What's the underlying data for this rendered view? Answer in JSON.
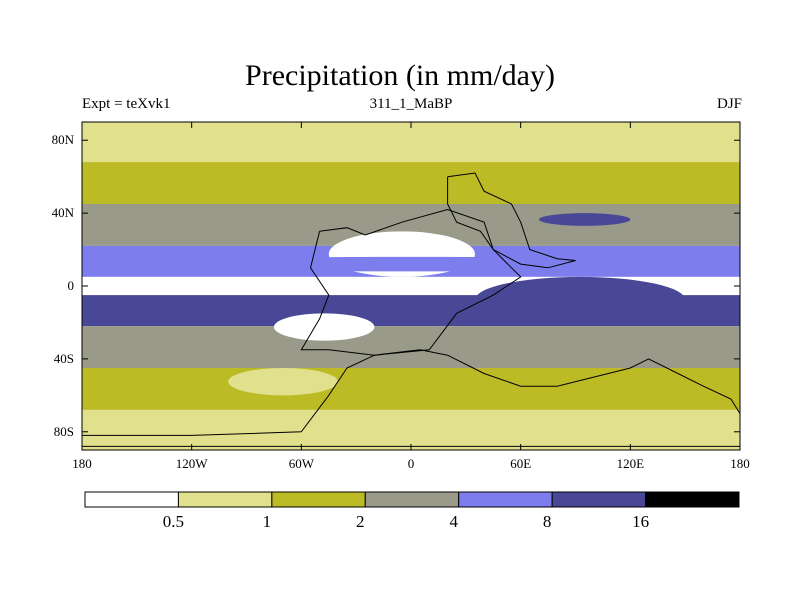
{
  "header": {
    "title": "Precipitation (in mm/day)",
    "left_label": "Expt = teXvk1",
    "center_label": "311_1_MaBP",
    "right_label": "DJF"
  },
  "chart_data": {
    "type": "heatmap",
    "title": "Precipitation (in mm/day)",
    "subtitle": "311_1_MaBP",
    "experiment": "Expt = teXvk1",
    "season": "DJF",
    "xlabel": "",
    "ylabel": "",
    "xlim": [
      -180,
      180
    ],
    "ylim": [
      -90,
      90
    ],
    "x_ticks": [
      {
        "value": -180,
        "label": "180"
      },
      {
        "value": -120,
        "label": "120W"
      },
      {
        "value": -60,
        "label": "60W"
      },
      {
        "value": 0,
        "label": "0"
      },
      {
        "value": 60,
        "label": "60E"
      },
      {
        "value": 120,
        "label": "120E"
      },
      {
        "value": 180,
        "label": "180"
      }
    ],
    "y_ticks": [
      {
        "value": 80,
        "label": "80N"
      },
      {
        "value": 40,
        "label": "40N"
      },
      {
        "value": 0,
        "label": "0"
      },
      {
        "value": -40,
        "label": "40S"
      },
      {
        "value": -80,
        "label": "80S"
      }
    ],
    "levels": [
      0.5,
      1,
      2,
      4,
      8,
      16
    ],
    "level_labels": [
      "0.5",
      "1",
      "2",
      "4",
      "8",
      "16"
    ],
    "colors": [
      "#ffffff",
      "#e1e08c",
      "#bdbb25",
      "#9a9a8a",
      "#7d7dee",
      "#484896",
      "#000000"
    ],
    "bands": [
      {
        "name": "polar-north",
        "lat": [
          68,
          90
        ],
        "class": 1
      },
      {
        "name": "high-lat-north",
        "lat": [
          45,
          68
        ],
        "class": 2
      },
      {
        "name": "midlat-north",
        "lat": [
          22,
          45
        ],
        "class": 3
      },
      {
        "name": "subtropics-north",
        "lat": [
          5,
          22
        ],
        "class": 4
      },
      {
        "name": "equator-dry",
        "lat": [
          -5,
          5
        ],
        "class": 0
      },
      {
        "name": "southern-itcz",
        "lat": [
          -22,
          -5
        ],
        "class": 5
      },
      {
        "name": "subtropics-south",
        "lat": [
          -45,
          -22
        ],
        "class": 3
      },
      {
        "name": "high-lat-south",
        "lat": [
          -68,
          -45
        ],
        "class": 2
      },
      {
        "name": "polar-south",
        "lat": [
          -90,
          -68
        ],
        "class": 1
      }
    ],
    "regions": [
      {
        "name": "north-dry-belt",
        "lon": [
          -170,
          180
        ],
        "lat": [
          -3,
          4
        ],
        "class": 0
      },
      {
        "name": "continent-arid-core",
        "lon": [
          -45,
          35
        ],
        "lat": [
          5,
          30
        ],
        "class": 0
      },
      {
        "name": "south-arid-core",
        "lon": [
          -75,
          -20
        ],
        "lat": [
          -30,
          -15
        ],
        "class": 0
      },
      {
        "name": "north-wet-storm",
        "lon": [
          -180,
          180
        ],
        "lat": [
          8,
          16
        ],
        "class": 4
      },
      {
        "name": "southern-wet-band",
        "lon": [
          -180,
          -110
        ],
        "lat": [
          -20,
          -10
        ],
        "class": 5
      },
      {
        "name": "ocean-wet-core",
        "lon": [
          35,
          150
        ],
        "lat": [
          -20,
          5
        ],
        "class": 5
      },
      {
        "name": "east-wet-north",
        "lon": [
          70,
          120
        ],
        "lat": [
          33,
          40
        ],
        "class": 5
      },
      {
        "name": "south-moist-patch",
        "lon": [
          -100,
          -40
        ],
        "lat": [
          -60,
          -45
        ],
        "class": 1
      }
    ],
    "coastline_vertices": [
      [
        -180,
        -88
      ],
      [
        180,
        -88
      ],
      [
        180,
        -70
      ],
      [
        175,
        -62
      ],
      [
        160,
        -55
      ],
      [
        140,
        -45
      ],
      [
        130,
        -40
      ],
      [
        120,
        -45
      ],
      [
        100,
        -50
      ],
      [
        80,
        -55
      ],
      [
        60,
        -55
      ],
      [
        40,
        -48
      ],
      [
        20,
        -38
      ],
      [
        5,
        -35
      ],
      [
        -20,
        -38
      ],
      [
        -35,
        -45
      ],
      [
        -45,
        -60
      ],
      [
        -60,
        -80
      ],
      [
        -120,
        -82
      ],
      [
        -180,
        -82
      ]
    ],
    "continent_vertices": [
      [
        -50,
        30
      ],
      [
        -35,
        32
      ],
      [
        -25,
        28
      ],
      [
        -5,
        35
      ],
      [
        20,
        42
      ],
      [
        40,
        35
      ],
      [
        45,
        20
      ],
      [
        55,
        10
      ],
      [
        60,
        5
      ],
      [
        45,
        -5
      ],
      [
        25,
        -15
      ],
      [
        10,
        -35
      ],
      [
        -20,
        -38
      ],
      [
        -45,
        -35
      ],
      [
        -60,
        -35
      ],
      [
        -50,
        -18
      ],
      [
        -45,
        -5
      ],
      [
        -55,
        10
      ],
      [
        -50,
        30
      ]
    ],
    "northern_continent_vertices": [
      [
        20,
        60
      ],
      [
        35,
        62
      ],
      [
        40,
        52
      ],
      [
        55,
        45
      ],
      [
        60,
        35
      ],
      [
        65,
        20
      ],
      [
        80,
        15
      ],
      [
        90,
        14
      ],
      [
        75,
        10
      ],
      [
        60,
        12
      ],
      [
        45,
        20
      ],
      [
        38,
        30
      ],
      [
        25,
        35
      ],
      [
        20,
        45
      ],
      [
        20,
        60
      ]
    ]
  }
}
